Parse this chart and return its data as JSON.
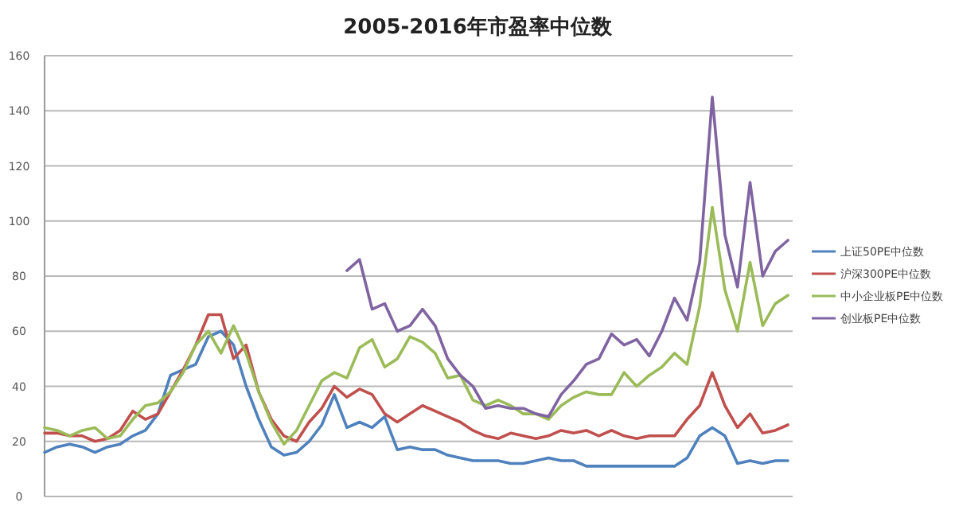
{
  "chart_data": {
    "type": "line",
    "title": "2005-2016年市盈率中位数",
    "categories": [
      null,
      null,
      null,
      null,
      null,
      null,
      null,
      null,
      null,
      null,
      null,
      null,
      null,
      null,
      null,
      null,
      null,
      null,
      null,
      null,
      null,
      null,
      null,
      null,
      null,
      null,
      null,
      null,
      null,
      null,
      null,
      null,
      null,
      null,
      null,
      null,
      null,
      null,
      null,
      null,
      null,
      null,
      null,
      null,
      null,
      null,
      null,
      null,
      null,
      null,
      null,
      null,
      null,
      null,
      null,
      null,
      null,
      null,
      null,
      null
    ],
    "series": [
      {
        "name": "上证50PE中位数",
        "color": "#4f81bd",
        "values": [
          16,
          18,
          19,
          18,
          16,
          18,
          19,
          22,
          24,
          30,
          44,
          46,
          48,
          58,
          60,
          55,
          40,
          28,
          18,
          15,
          16,
          20,
          26,
          37,
          25,
          27,
          25,
          29,
          17,
          18,
          17,
          17,
          15,
          14,
          13,
          13,
          13,
          12,
          12,
          13,
          14,
          13,
          13,
          11,
          11,
          11,
          11,
          11,
          11,
          11,
          11,
          14,
          22,
          25,
          22,
          12,
          13,
          12,
          13,
          13
        ]
      },
      {
        "name": "沪深300PE中位数",
        "color": "#c0504d",
        "values": [
          23,
          23,
          22,
          22,
          20,
          21,
          24,
          31,
          28,
          30,
          38,
          46,
          55,
          66,
          66,
          50,
          55,
          38,
          28,
          22,
          20,
          27,
          32,
          40,
          36,
          39,
          37,
          30,
          27,
          30,
          33,
          31,
          29,
          27,
          24,
          22,
          21,
          23,
          22,
          21,
          22,
          24,
          23,
          24,
          22,
          24,
          22,
          21,
          22,
          22,
          22,
          28,
          33,
          45,
          33,
          25,
          30,
          23,
          24,
          26
        ]
      },
      {
        "name": "中小企业板PE中位数",
        "color": "#9bbb59",
        "values": [
          25,
          24,
          22,
          24,
          25,
          21,
          22,
          28,
          33,
          34,
          38,
          45,
          55,
          60,
          52,
          62,
          52,
          38,
          27,
          19,
          24,
          33,
          42,
          45,
          43,
          54,
          57,
          47,
          50,
          58,
          56,
          52,
          43,
          44,
          35,
          33,
          35,
          33,
          30,
          30,
          28,
          33,
          36,
          38,
          37,
          37,
          45,
          40,
          44,
          47,
          52,
          48,
          69,
          105,
          75,
          60,
          85,
          62,
          70,
          73
        ]
      },
      {
        "name": "创业板PE中位数",
        "color": "#8064a2",
        "values": [
          null,
          null,
          null,
          null,
          null,
          null,
          null,
          null,
          null,
          null,
          null,
          null,
          null,
          null,
          null,
          null,
          null,
          null,
          null,
          null,
          null,
          null,
          null,
          null,
          82,
          86,
          68,
          70,
          60,
          62,
          68,
          62,
          50,
          44,
          40,
          32,
          33,
          32,
          32,
          30,
          29,
          37,
          42,
          48,
          50,
          59,
          55,
          57,
          51,
          60,
          72,
          64,
          85,
          145,
          95,
          76,
          114,
          80,
          89,
          93
        ]
      }
    ],
    "ylim": [
      0,
      160
    ],
    "yticks": [
      0,
      20,
      40,
      60,
      80,
      100,
      120,
      140,
      160
    ],
    "grid": "y",
    "legend": "right"
  }
}
